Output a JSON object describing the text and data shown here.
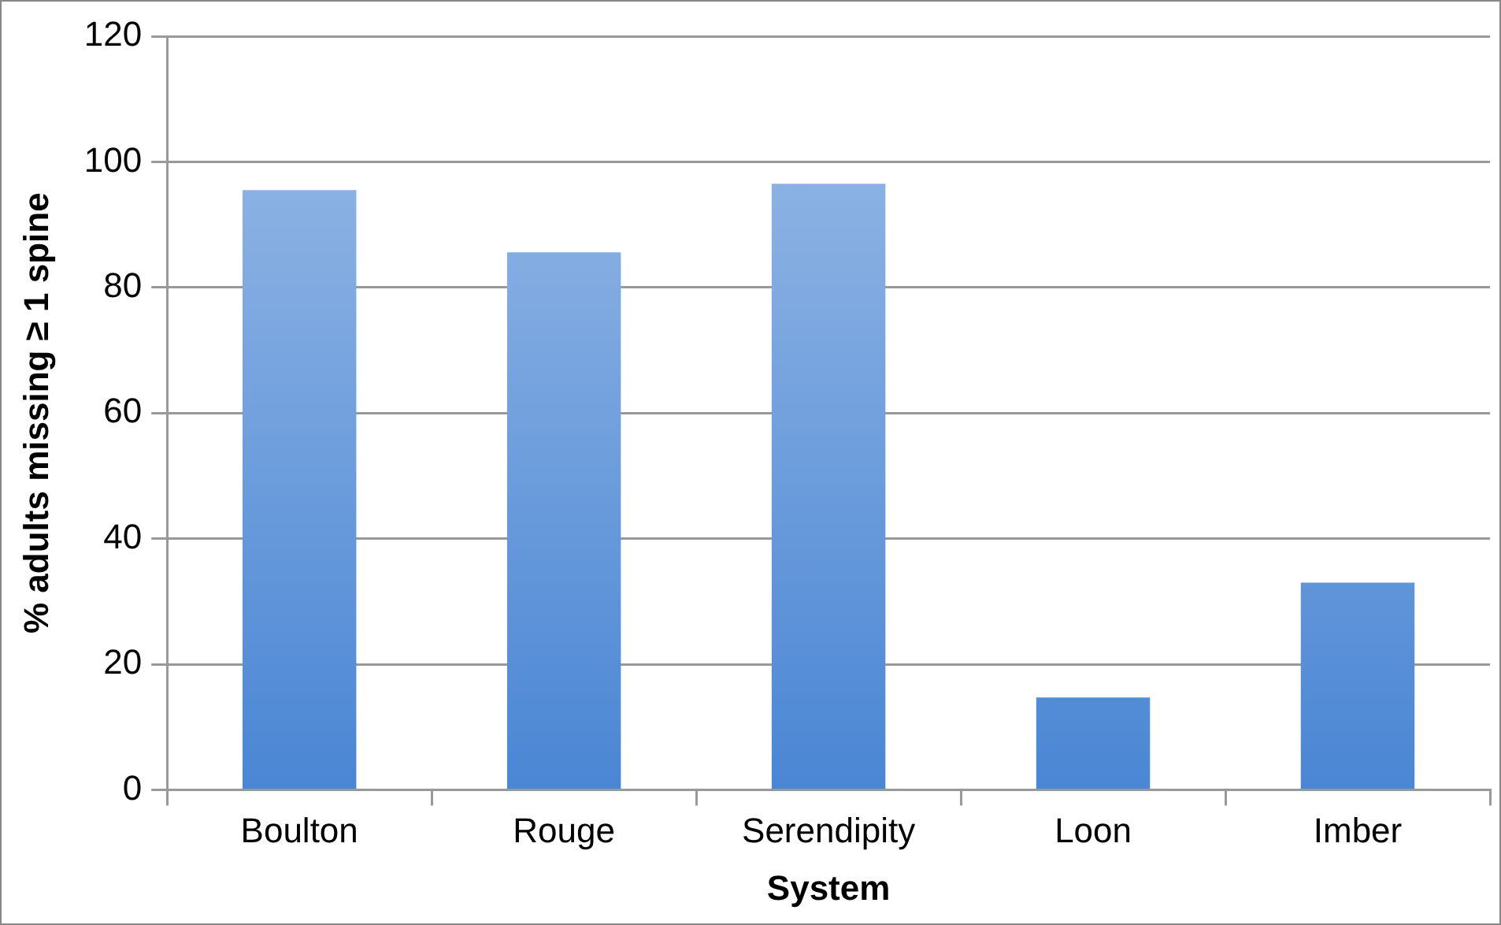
{
  "chart_data": {
    "type": "bar",
    "xlabel": "System",
    "ylabel": "% adults missing ≥ 1 spine",
    "categories": [
      "Boulton",
      "Rouge",
      "Serendipity",
      "Loon",
      "Imber"
    ],
    "values": [
      95.5,
      85.6,
      96.5,
      14.7,
      33
    ],
    "color": "#4a86d4",
    "ylim": [
      0,
      120
    ],
    "yticks": [
      0,
      20,
      40,
      60,
      80,
      100,
      120
    ],
    "grid": "y",
    "legend": false
  }
}
